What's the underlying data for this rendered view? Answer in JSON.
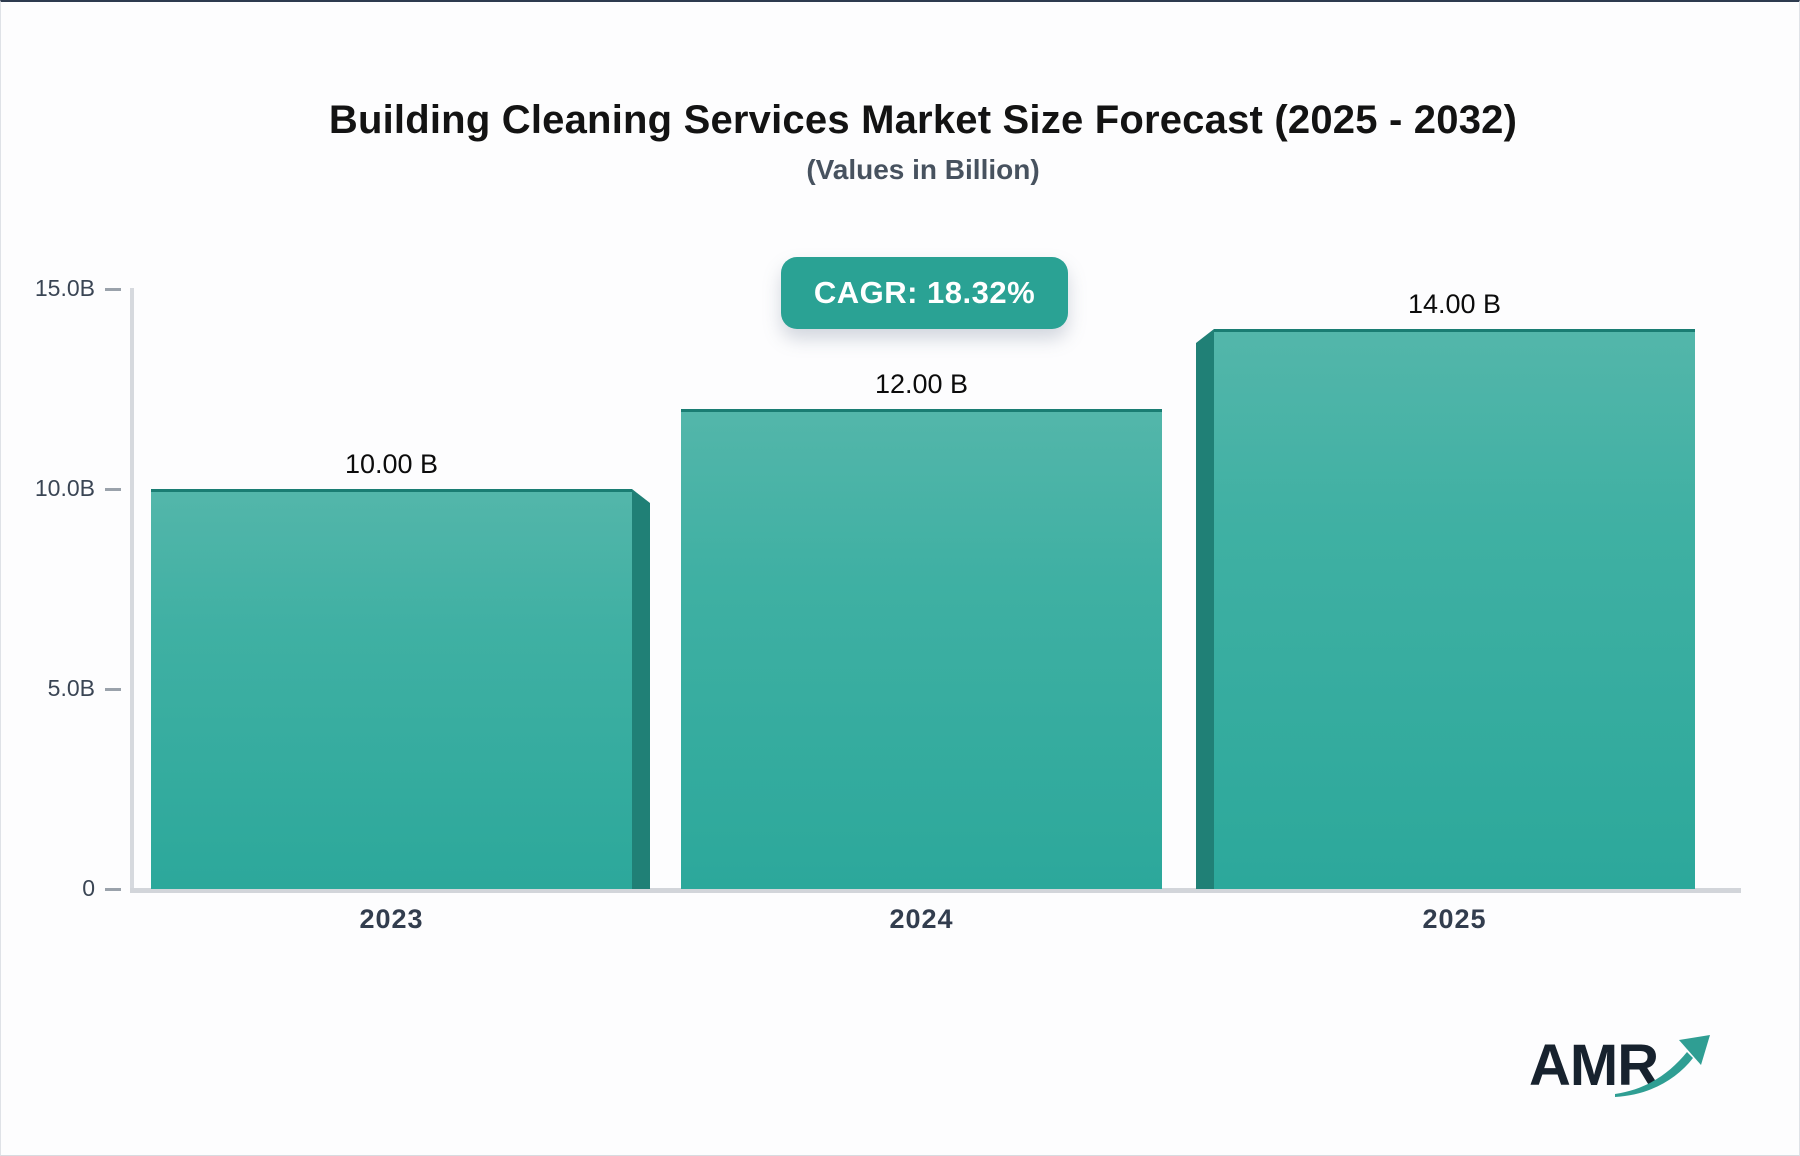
{
  "page": {
    "title": "Building Cleaning Services Market Size Forecast (2025 - 2032)",
    "subtitle": "(Values in Billion)",
    "cagr_badge_label": "CAGR: 18.32%",
    "logo_text": "AMR"
  },
  "chart_data": {
    "type": "bar",
    "title": "Building Cleaning Services Market Size Forecast (2025 - 2032)",
    "subtitle": "(Values in Billion)",
    "annotation": "CAGR: 18.32%",
    "categories": [
      "2023",
      "2024",
      "2025"
    ],
    "values": [
      10.0,
      12.0,
      14.0
    ],
    "value_labels": [
      "10.00 B",
      "12.00 B",
      "14.00 B"
    ],
    "yticks": [
      {
        "value": 15,
        "label": "15.0B"
      },
      {
        "value": 10,
        "label": "10.0B"
      },
      {
        "value": 5,
        "label": "5.0B"
      },
      {
        "value": 0,
        "label": "0"
      }
    ],
    "ylim": [
      0,
      15
    ],
    "grid": false,
    "legend": false,
    "colors": {
      "bar_gradient_top": "#53b6aa",
      "bar_gradient_bottom": "#2ca89b",
      "bar_top_edge": "#1a7d73",
      "bar_3d_side": "#208076",
      "badge_background": "#2aa294",
      "badge_text": "#ffffff",
      "axis_line": "#d4d7db",
      "logo_arrow": "#2f9e93"
    }
  }
}
